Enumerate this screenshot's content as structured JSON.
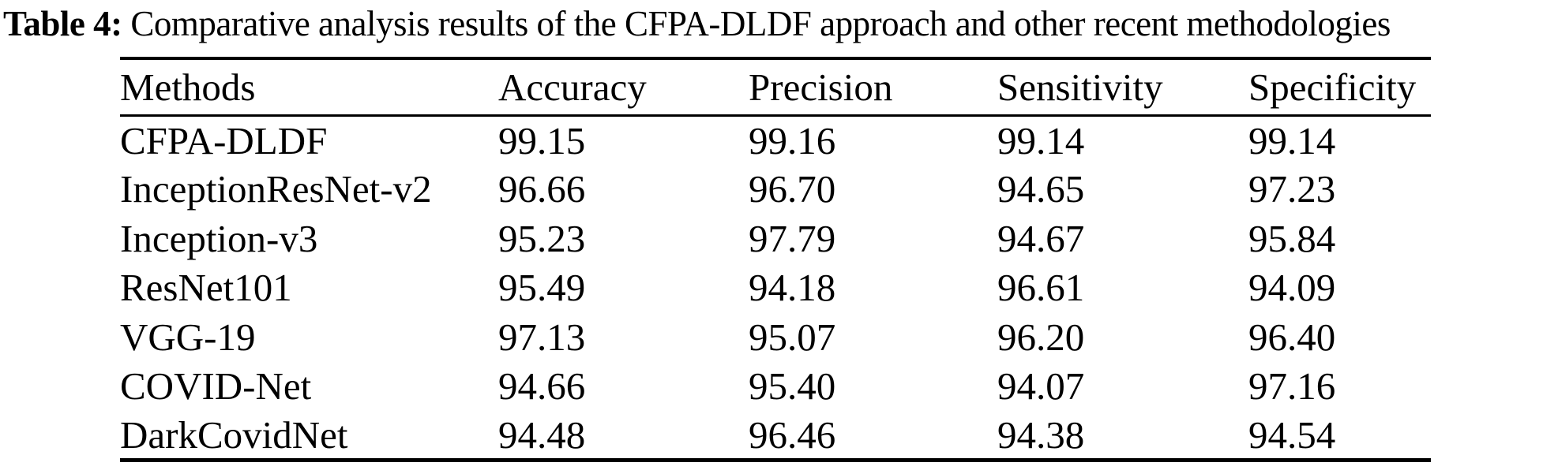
{
  "caption": {
    "label": "Table 4:",
    "text": "Comparative analysis results of the CFPA-DLDF approach and other recent methodologies"
  },
  "table": {
    "columns": [
      "Methods",
      "Accuracy",
      "Precision",
      "Sensitivity",
      "Specificity"
    ],
    "rows": [
      {
        "method": "CFPA-DLDF",
        "values": [
          "99.15",
          "99.16",
          "99.14",
          "99.14"
        ]
      },
      {
        "method": "InceptionResNet-v2",
        "values": [
          "96.66",
          "96.70",
          "94.65",
          "97.23"
        ]
      },
      {
        "method": "Inception-v3",
        "values": [
          "95.23",
          "97.79",
          "94.67",
          "95.84"
        ]
      },
      {
        "method": "ResNet101",
        "values": [
          "95.49",
          "94.18",
          "96.61",
          "94.09"
        ]
      },
      {
        "method": "VGG-19",
        "values": [
          "97.13",
          "95.07",
          "96.20",
          "96.40"
        ]
      },
      {
        "method": "COVID-Net",
        "values": [
          "94.66",
          "95.40",
          "94.07",
          "97.16"
        ]
      },
      {
        "method": "DarkCovidNet",
        "values": [
          "94.48",
          "96.46",
          "94.38",
          "94.54"
        ]
      }
    ]
  },
  "colors": {
    "text": "#000000",
    "background": "#ffffff",
    "rule": "#000000"
  },
  "chart_data": {
    "type": "table",
    "title": "Table 4: Comparative analysis results of the CFPA-DLDF approach and other recent methodologies",
    "columns": [
      "Methods",
      "Accuracy",
      "Precision",
      "Sensitivity",
      "Specificity"
    ],
    "rows": [
      [
        "CFPA-DLDF",
        99.15,
        99.16,
        99.14,
        99.14
      ],
      [
        "InceptionResNet-v2",
        96.66,
        96.7,
        94.65,
        97.23
      ],
      [
        "Inception-v3",
        95.23,
        97.79,
        94.67,
        95.84
      ],
      [
        "ResNet101",
        95.49,
        94.18,
        96.61,
        94.09
      ],
      [
        "VGG-19",
        97.13,
        95.07,
        96.2,
        96.4
      ],
      [
        "COVID-Net",
        94.66,
        95.4,
        94.07,
        97.16
      ],
      [
        "DarkCovidNet",
        94.48,
        96.46,
        94.38,
        94.54
      ]
    ]
  }
}
